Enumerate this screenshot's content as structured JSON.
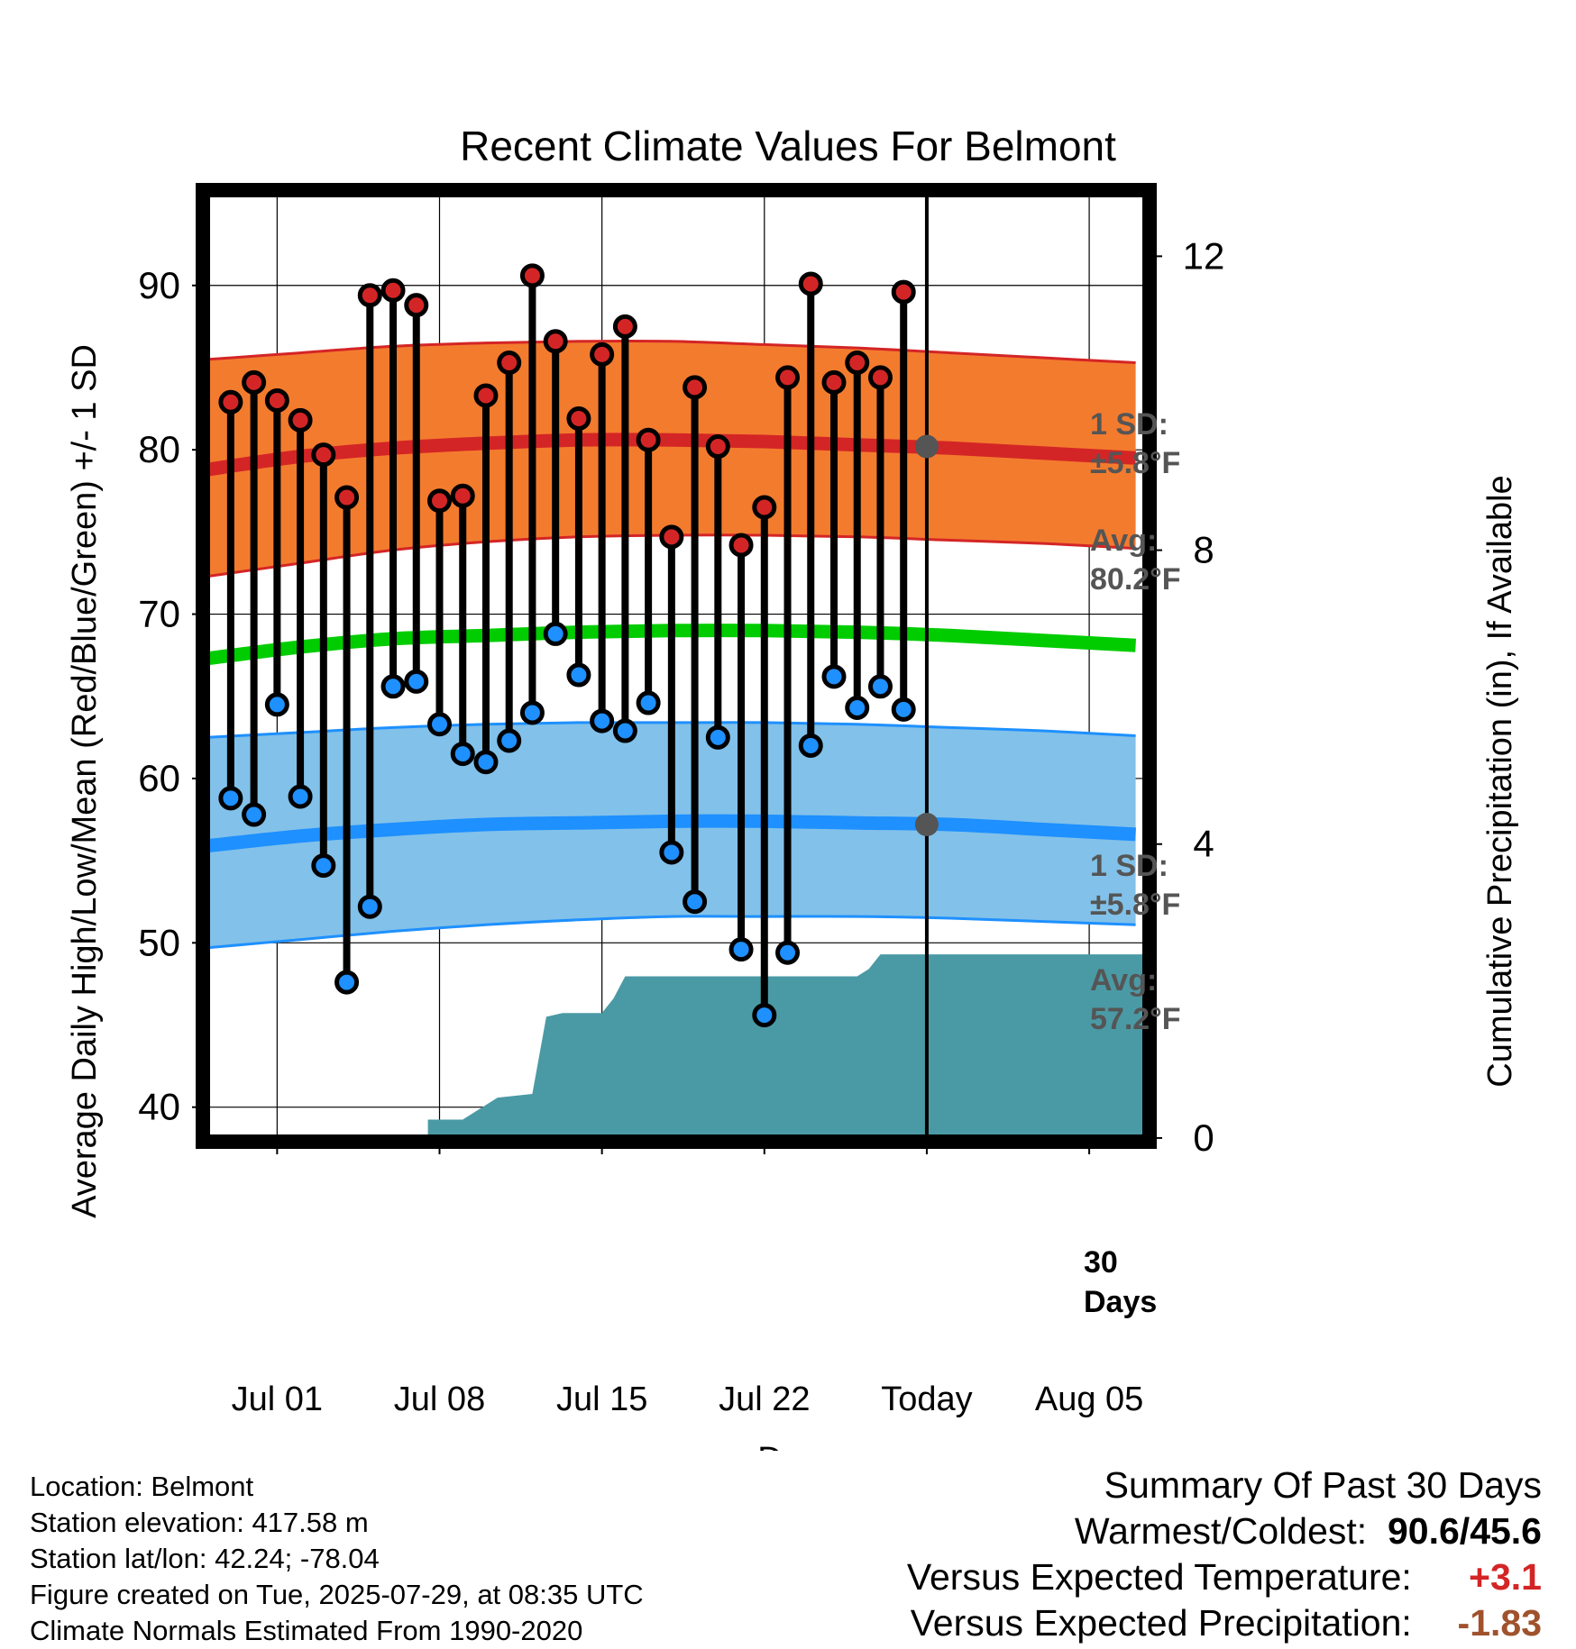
{
  "chart_data": {
    "type": "line",
    "title": "Recent Climate Values For Belmont",
    "xlabel": "Day",
    "ylabel": "Average Daily High/Low/Mean (Red/Blue/Green) +/- 1 SD",
    "y2label": "Cumulative Precipitation (in), If Available",
    "x_tick_labels": [
      "Jul 01",
      "Jul 08",
      "Jul 15",
      "Jul 22",
      "Today",
      "Aug 05"
    ],
    "x_tick_days": [
      1,
      8,
      15,
      22,
      29,
      36
    ],
    "xlim": [
      -2.2,
      38.6
    ],
    "ylim": [
      37.9,
      95.8
    ],
    "y_ticks": [
      40,
      50,
      60,
      70,
      80,
      90
    ],
    "y2lim": [
      -0.05,
      12.9
    ],
    "y2_ticks": [
      0,
      4,
      8,
      12
    ],
    "grid": true,
    "days": [
      -1,
      0,
      1,
      2,
      3,
      4,
      5,
      6,
      7,
      8,
      9,
      10,
      11,
      12,
      13,
      14,
      15,
      16,
      17,
      18,
      19,
      20,
      21,
      22,
      23,
      24,
      25,
      26,
      27,
      28
    ],
    "highs": [
      82.9,
      84.1,
      83.0,
      81.8,
      79.7,
      77.1,
      89.4,
      89.7,
      88.8,
      76.9,
      77.2,
      83.3,
      85.3,
      90.6,
      86.6,
      81.9,
      85.8,
      87.5,
      80.6,
      74.7,
      83.8,
      80.2,
      74.2,
      76.5,
      84.4,
      90.1,
      84.1,
      85.3,
      84.4,
      89.6
    ],
    "lows": [
      58.8,
      57.8,
      64.5,
      58.9,
      54.7,
      47.6,
      52.2,
      65.6,
      65.9,
      63.3,
      61.5,
      61.0,
      62.3,
      64.0,
      68.8,
      66.3,
      63.5,
      62.9,
      64.6,
      55.5,
      52.5,
      62.5,
      49.6,
      45.6,
      49.4,
      62.0,
      66.2,
      64.3,
      65.6,
      64.2
    ],
    "normal_x": [
      -2,
      2,
      6,
      10,
      14,
      18,
      22,
      26,
      30,
      34,
      38
    ],
    "normal_high_avg": [
      78.8,
      79.6,
      80.1,
      80.4,
      80.6,
      80.6,
      80.5,
      80.3,
      80.1,
      79.8,
      79.5
    ],
    "normal_high_sd_upper": [
      85.5,
      85.9,
      86.3,
      86.5,
      86.6,
      86.6,
      86.4,
      86.2,
      85.9,
      85.6,
      85.3
    ],
    "normal_high_sd_lower": [
      72.3,
      73.1,
      73.9,
      74.4,
      74.7,
      74.8,
      74.8,
      74.7,
      74.5,
      74.3,
      74.0
    ],
    "normal_mean": [
      67.3,
      68.0,
      68.5,
      68.7,
      68.9,
      69.0,
      69.0,
      68.9,
      68.7,
      68.4,
      68.1
    ],
    "normal_low_avg": [
      55.9,
      56.5,
      56.9,
      57.2,
      57.3,
      57.4,
      57.4,
      57.3,
      57.2,
      56.9,
      56.6
    ],
    "normal_low_sd_upper": [
      62.5,
      62.8,
      63.1,
      63.3,
      63.4,
      63.4,
      63.4,
      63.3,
      63.1,
      62.9,
      62.6
    ],
    "normal_low_sd_lower": [
      49.7,
      50.2,
      50.7,
      51.1,
      51.4,
      51.6,
      51.6,
      51.6,
      51.5,
      51.3,
      51.1
    ],
    "precip_x": [
      -2,
      7.5,
      7.5,
      9,
      9,
      10.5,
      10.5,
      12,
      12.6,
      13.3,
      15,
      15.5,
      16,
      22,
      26,
      26.5,
      27,
      28,
      38.6
    ],
    "precip_y": [
      0,
      0,
      0.25,
      0.25,
      0.25,
      0.55,
      0.55,
      0.6,
      1.65,
      1.7,
      1.7,
      1.9,
      2.2,
      2.2,
      2.2,
      2.3,
      2.5,
      2.5,
      2.5
    ],
    "today_day": 29,
    "today_high_avg": 80.2,
    "today_low_avg": 57.2,
    "annotations": {
      "high_sd_label": "1 SD:",
      "high_sd_value": "±5.8°F",
      "high_avg_label": "Avg:",
      "high_avg_value": "80.2°F",
      "low_sd_label": "1 SD:",
      "low_sd_value": "±5.8°F",
      "low_avg_label": "Avg:",
      "low_avg_value": "57.2°F",
      "precip_label_1": "30",
      "precip_label_2": "Days"
    },
    "colors": {
      "high_band": "#F37B2E",
      "high_line": "#D42526",
      "mean_line": "#00CC00",
      "low_band": "#82C1E9",
      "low_line": "#1E90FF",
      "high_marker": "#D42526",
      "low_marker": "#1E90FF",
      "precip": "#4A9AA5",
      "annotation_text": "#555555"
    }
  },
  "footer": {
    "location": "Location: Belmont",
    "elevation": "Station elevation: 417.58 m",
    "latlon": "Station lat/lon: 42.24; -78.04",
    "created": "Figure created on Tue, 2025-07-29, at 08:35 UTC",
    "normals": "Climate Normals Estimated From 1990-2020"
  },
  "summary": {
    "title": "Summary Of Past 30 Days",
    "warm_cold_label": "Warmest/Coldest:",
    "warm_cold_value": "90.6/45.6",
    "temp_label": "Versus Expected Temperature:",
    "temp_value": "+3.1",
    "temp_color": "#D42526",
    "precip_label": "Versus Expected Precipitation:",
    "precip_value": "-1.83",
    "precip_color": "#A0522D"
  }
}
